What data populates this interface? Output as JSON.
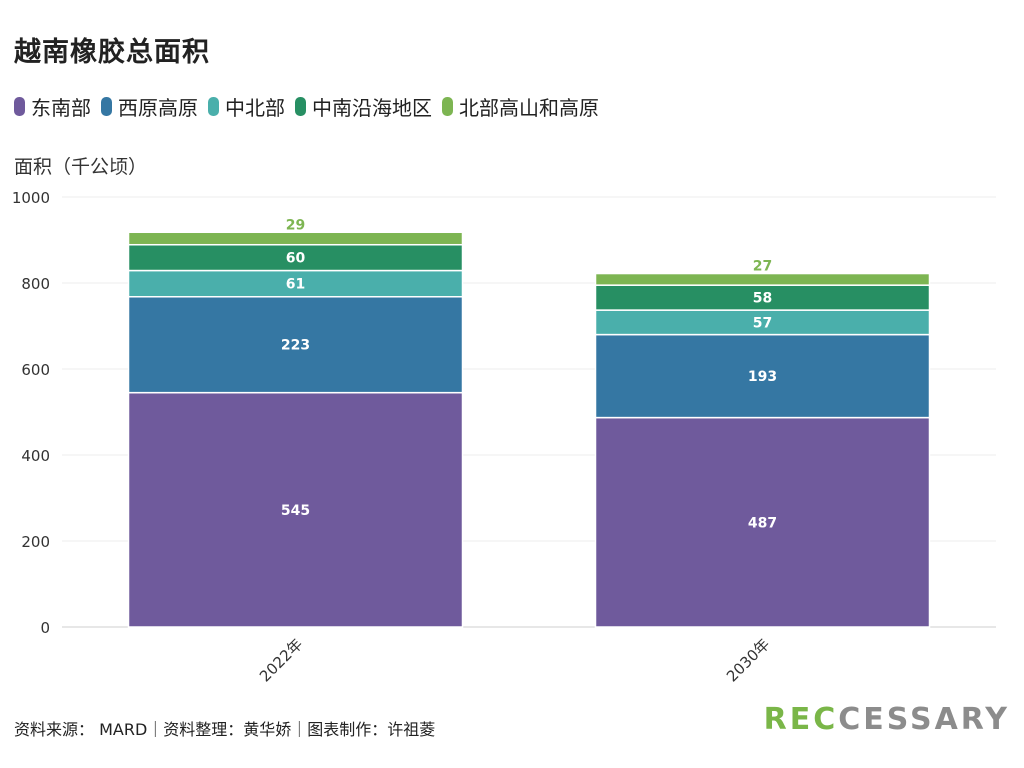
{
  "title": "越南橡胶总面积",
  "source": "资料来源： MARD｜资料整理：黄华娇｜图表制作：许祖菱",
  "brand": {
    "accent": "REC",
    "main": "CESSARY"
  },
  "colors": {
    "东南部": "#6f5a9c",
    "西原高原": "#3577a3",
    "中北部": "#4aafab",
    "中南沿海地区": "#278f63",
    "北部高山和高原": "#7db552"
  },
  "chart_data": {
    "type": "bar",
    "stacked": true,
    "title": "越南橡胶总面积",
    "ylabel": "面积（千公顷）",
    "xlabel": "",
    "ylim": [
      0,
      1000
    ],
    "yticks": [
      0,
      200,
      400,
      600,
      800,
      1000
    ],
    "categories": [
      "2022年",
      "2030年"
    ],
    "legend_position": "top-left",
    "grid": true,
    "series": [
      {
        "name": "东南部",
        "values": [
          545,
          487
        ]
      },
      {
        "name": "西原高原",
        "values": [
          223,
          193
        ]
      },
      {
        "name": "中北部",
        "values": [
          61,
          57
        ]
      },
      {
        "name": "中南沿海地区",
        "values": [
          60,
          58
        ]
      },
      {
        "name": "北部高山和高原",
        "values": [
          29,
          27
        ]
      }
    ]
  }
}
